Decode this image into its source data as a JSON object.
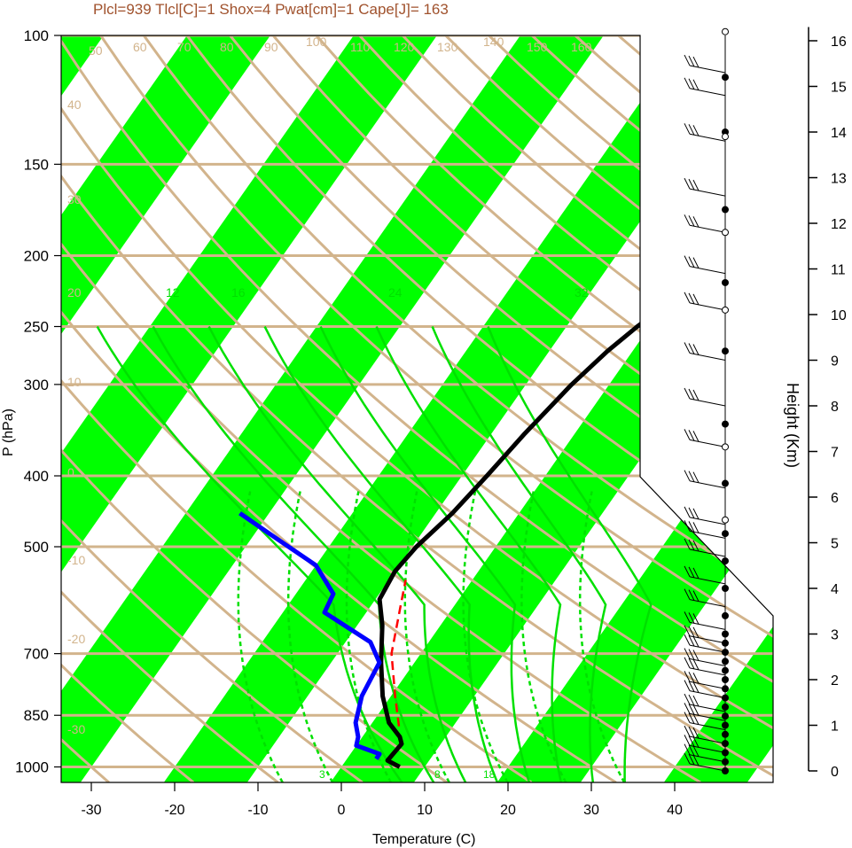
{
  "title": "Plcl=939 Tlcl[C]=1 Shox=4 Pwat[cm]=1 Cape[J]= 163",
  "chart_data": {
    "type": "line",
    "xlabel": "Temperature (C)",
    "ylabel": "P (hPa)",
    "y2label": "Height (Km)",
    "xlim": [
      -33,
      52
    ],
    "ylim": [
      100,
      1050
    ],
    "x_ticks": [
      "-30",
      "-20",
      "-10",
      "0",
      "10",
      "20",
      "30",
      "40"
    ],
    "y_ticks": [
      "100",
      "150",
      "200",
      "250",
      "300",
      "400",
      "500",
      "700",
      "850",
      "1000"
    ],
    "height_ticks": [
      "0",
      "1",
      "2",
      "3",
      "4",
      "5",
      "6",
      "7",
      "8",
      "9",
      "10",
      "11",
      "12",
      "13",
      "14",
      "15",
      "16"
    ],
    "colors": {
      "temperature": "#000000",
      "dewpoint": "#0000ff",
      "parcel": "#ff0000",
      "isotherm_band": "#00ff00",
      "dry_adiabat": "#d2b48c",
      "moist_adiabat": "#00e000",
      "title": "#a0522d"
    },
    "isotherm_labels": [
      "50",
      "60",
      "70",
      "80",
      "90",
      "100",
      "110",
      "120",
      "130",
      "140",
      "150",
      "160",
      "40",
      "30",
      "20",
      "10",
      "0",
      "-10",
      "-20",
      "-30",
      "30",
      "20",
      "10",
      "0",
      "10",
      "20",
      "30"
    ],
    "moist_adiabat_labels": [
      "12",
      "16",
      "24",
      "32"
    ],
    "mixing_ratio_labels": [
      "3",
      "8",
      "18"
    ],
    "series": [
      {
        "name": "Temperature",
        "points": [
          [
            7,
            1000
          ],
          [
            5,
            980
          ],
          [
            5.3,
            930
          ],
          [
            4.5,
            910
          ],
          [
            2,
            870
          ],
          [
            -1,
            800
          ],
          [
            -4,
            720
          ],
          [
            -7,
            640
          ],
          [
            -9.5,
            590
          ],
          [
            -10,
            540
          ],
          [
            -9.5,
            500
          ],
          [
            -8,
            450
          ],
          [
            -7,
            400
          ],
          [
            -6,
            350
          ],
          [
            -4.5,
            300
          ],
          [
            -3,
            270
          ],
          [
            -1.5,
            250
          ],
          [
            0.5,
            230
          ],
          [
            4,
            210
          ],
          [
            10,
            185
          ],
          [
            14,
            165
          ],
          [
            19,
            140
          ],
          [
            21,
            120
          ],
          [
            24,
            110
          ]
        ]
      },
      {
        "name": "Dewpoint",
        "points": [
          [
            3.5,
            975
          ],
          [
            3.5,
            960
          ],
          [
            0,
            935
          ],
          [
            -0.5,
            910
          ],
          [
            -2,
            870
          ],
          [
            -3.5,
            800
          ],
          [
            -4.2,
            720
          ],
          [
            -7,
            675
          ],
          [
            -15,
            615
          ],
          [
            -15.5,
            580
          ],
          [
            -20,
            530
          ],
          [
            -26.5,
            490
          ],
          [
            -33.5,
            450
          ]
        ]
      },
      {
        "name": "Parcel",
        "dashed": true,
        "points": [
          [
            3.5,
            880
          ],
          [
            0.5,
            800
          ],
          [
            -3.5,
            700
          ],
          [
            -6.5,
            600
          ],
          [
            -8,
            555
          ]
        ]
      }
    ],
    "wind_barb_heights_km": [
      0,
      0.2,
      0.4,
      0.6,
      0.9,
      1.1,
      1.3,
      1.6,
      1.8,
      2.1,
      2.3,
      2.6,
      2.8,
      3.1,
      3.6,
      4.1,
      4.7,
      5.1,
      5.4,
      6.2,
      7.1,
      8,
      9,
      10.1,
      10.9,
      11.8,
      12.6,
      13.8,
      14.8,
      15.3
    ],
    "wind_barb_filled_dots_km": [
      0,
      0.2,
      0.4,
      0.6,
      0.8,
      1.0,
      1.2,
      1.4,
      1.6,
      1.8,
      2.0,
      2.2,
      2.4,
      2.6,
      2.8,
      3.0,
      3.4,
      4.0,
      4.6,
      5.2,
      6.3,
      7.6,
      9.2,
      10.7,
      12.3,
      14.0,
      15.2
    ],
    "wind_barb_open_dots_km": [
      5.5,
      7.1,
      10.1,
      11.8,
      13.9,
      16.2
    ]
  }
}
